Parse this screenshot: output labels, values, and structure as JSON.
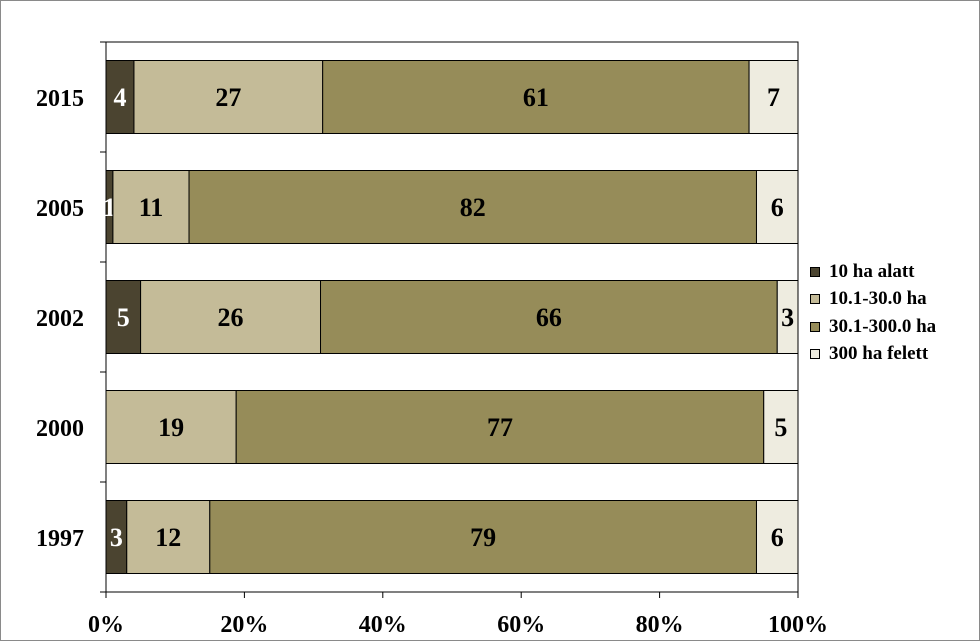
{
  "chart_data": {
    "type": "bar",
    "orientation": "horizontal",
    "stacked": "percent",
    "categories": [
      "2015",
      "2005",
      "2002",
      "2000",
      "1997"
    ],
    "series": [
      {
        "name": "10 ha alatt",
        "values": [
          4,
          1,
          5,
          0,
          3
        ],
        "labels": [
          "4",
          "1",
          "5",
          "",
          "3"
        ],
        "color": "#4b4430",
        "label_color": "#ffffff"
      },
      {
        "name": "10.1-30.0 ha",
        "values": [
          27,
          11,
          26,
          19,
          12
        ],
        "labels": [
          "27",
          "11",
          "26",
          "19",
          "12"
        ],
        "color": "#c4bb98",
        "label_color": "#000000"
      },
      {
        "name": "30.1-300.0 ha",
        "values": [
          61,
          82,
          66,
          77,
          79
        ],
        "labels": [
          "61",
          "82",
          "66",
          "77",
          "79"
        ],
        "color": "#968c59",
        "label_color": "#000000"
      },
      {
        "name": "300 ha felett",
        "values": [
          7,
          6,
          3,
          5,
          6
        ],
        "labels": [
          "7",
          "6",
          "3",
          "5",
          "6"
        ],
        "color": "#eeece0",
        "label_color": "#000000"
      }
    ],
    "x_ticks": [
      "0%",
      "20%",
      "40%",
      "60%",
      "80%",
      "100%"
    ],
    "xlim": [
      0,
      100
    ],
    "legend_position": "right",
    "grid": false
  }
}
